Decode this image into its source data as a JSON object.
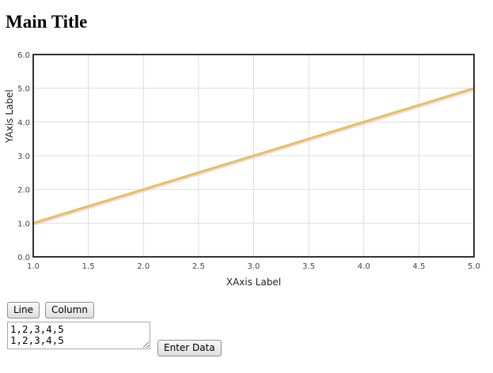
{
  "page": {
    "title": "Main Title"
  },
  "controls": {
    "line_label": "Line",
    "column_label": "Column",
    "enter_data_label": "Enter Data",
    "data_text": "1,2,3,4,5\n1,2,3,4,5"
  },
  "chart_data": {
    "type": "line",
    "title": "",
    "xlabel": "XAxis Label",
    "ylabel": "YAxis Label",
    "xlim": [
      1.0,
      5.0
    ],
    "ylim": [
      0.0,
      6.0
    ],
    "x_ticks": [
      "1.0",
      "1.5",
      "2.0",
      "2.5",
      "3.0",
      "3.5",
      "4.0",
      "4.5",
      "5.0"
    ],
    "y_ticks": [
      "0.0",
      "1.0",
      "2.0",
      "3.0",
      "4.0",
      "5.0",
      "6.0"
    ],
    "grid": true,
    "series": [
      {
        "x": [
          1,
          2,
          3,
          4,
          5
        ],
        "values": [
          1,
          2,
          3,
          4,
          5
        ],
        "color": "#e6c25a"
      }
    ]
  }
}
